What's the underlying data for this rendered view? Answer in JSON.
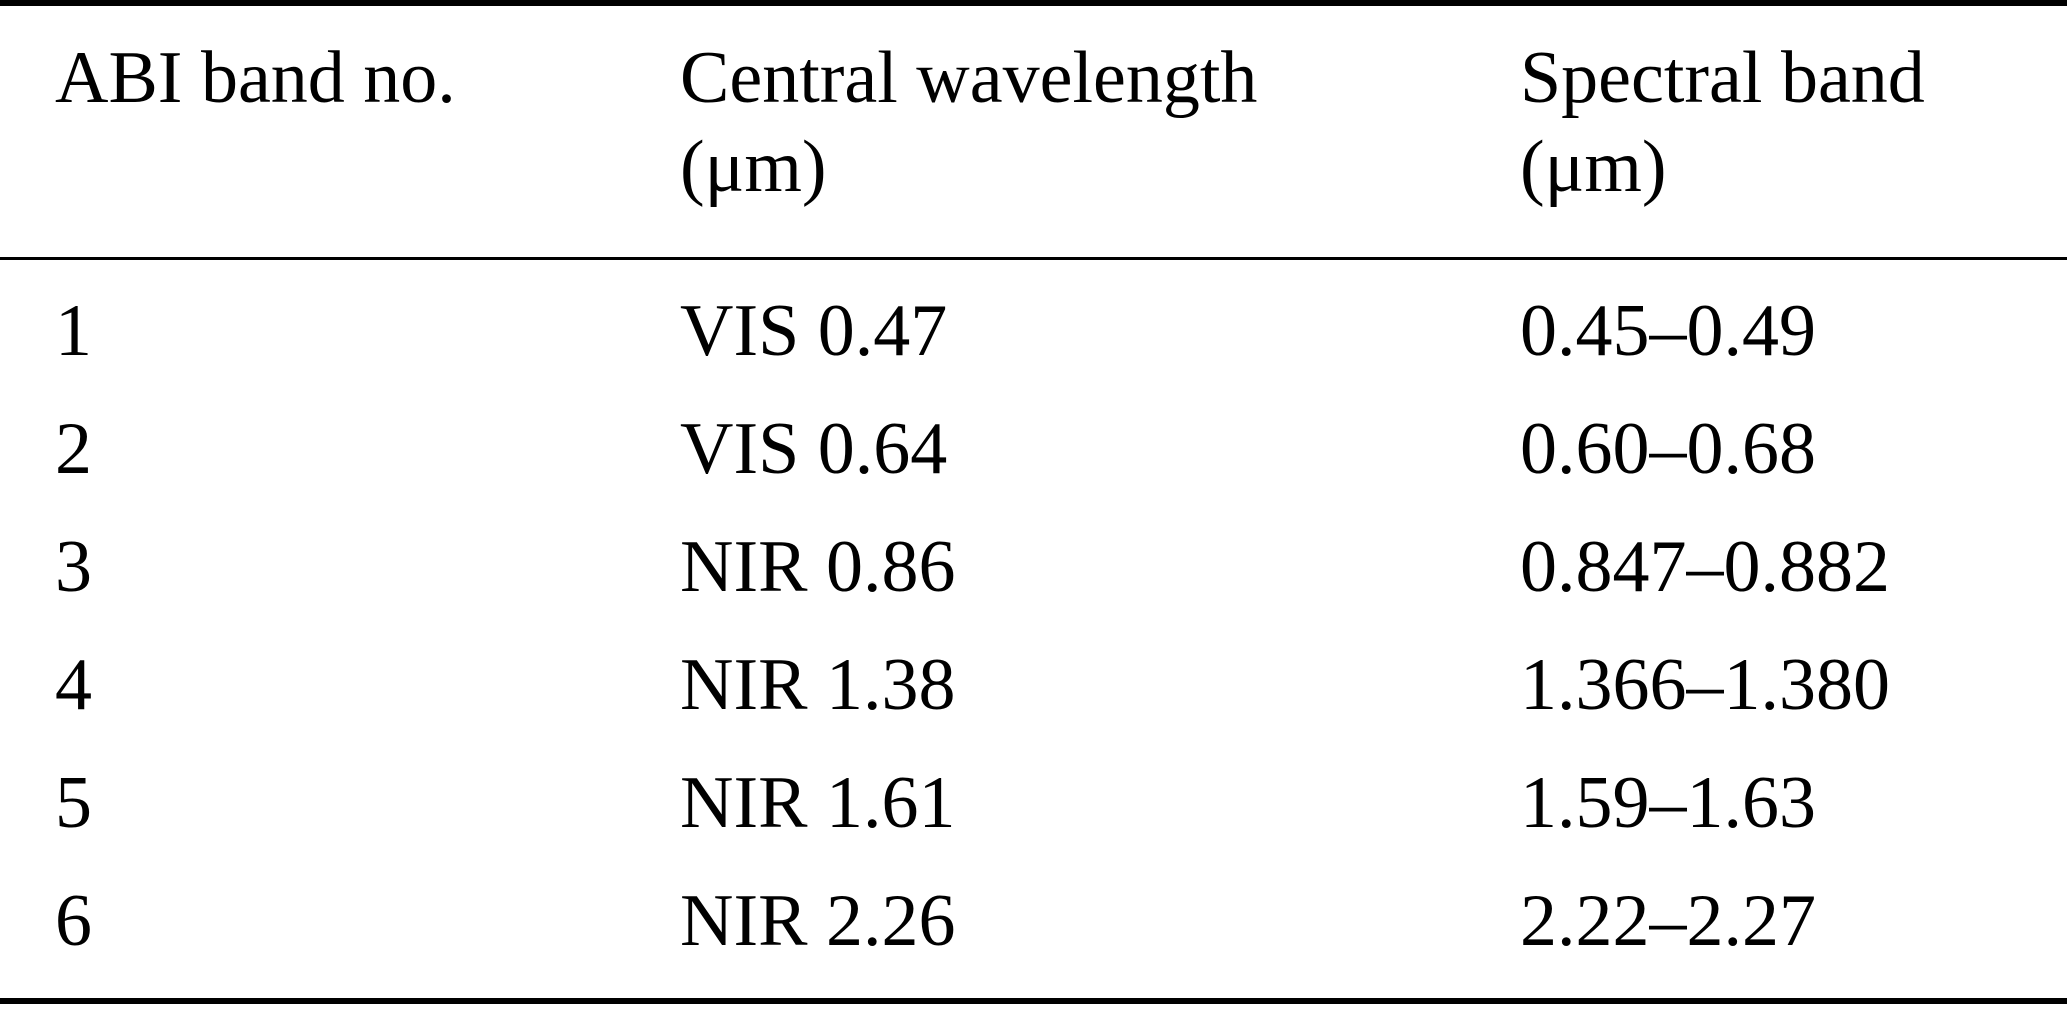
{
  "table": {
    "headers": [
      {
        "label": "ABI band no.",
        "unit": ""
      },
      {
        "label": "Central wavelength",
        "unit": "(μm)"
      },
      {
        "label": "Spectral band",
        "unit": "(μm)"
      }
    ],
    "rows": [
      {
        "no": "1",
        "central": "VIS 0.47",
        "spectral": "0.45–0.49"
      },
      {
        "no": "2",
        "central": "VIS 0.64",
        "spectral": "0.60–0.68"
      },
      {
        "no": "3",
        "central": "NIR 0.86",
        "spectral": "0.847–0.882"
      },
      {
        "no": "4",
        "central": "NIR 1.38",
        "spectral": "1.366–1.380"
      },
      {
        "no": "5",
        "central": "NIR 1.61",
        "spectral": "1.59–1.63"
      },
      {
        "no": "6",
        "central": "NIR 2.26",
        "spectral": "2.22–2.27"
      }
    ]
  }
}
